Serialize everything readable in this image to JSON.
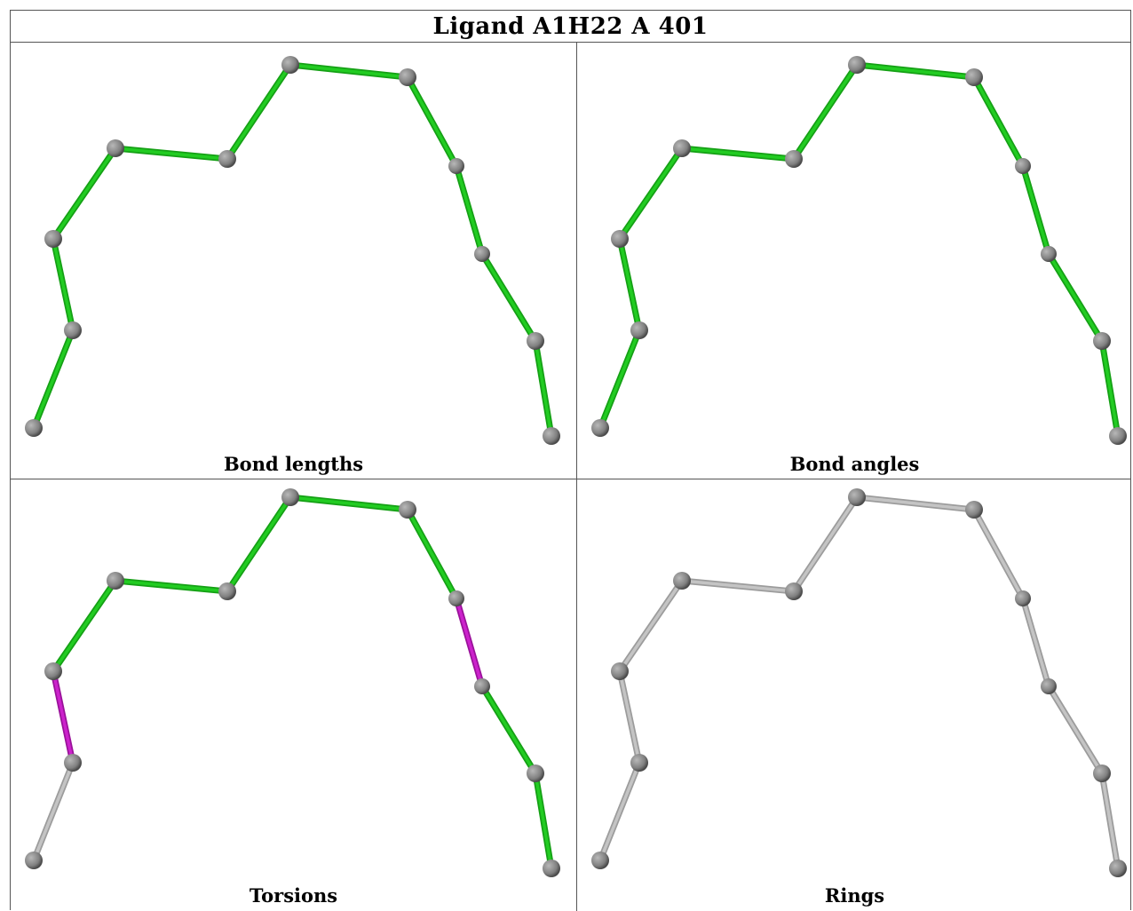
{
  "title": "Ligand A1H22 A 401",
  "colors": {
    "green": "#22cc22",
    "green_dark": "#15a015",
    "magenta": "#cc22cc",
    "gray_bond": "#c4c4c4",
    "atom": "#808080",
    "atom_dark": "#4a4a4a"
  },
  "panels": [
    {
      "label": "Bond lengths",
      "bond_colors": [
        "green",
        "green",
        "green",
        "green",
        "green",
        "green",
        "green",
        "green",
        "green",
        "green",
        "green",
        "green"
      ]
    },
    {
      "label": "Bond angles",
      "bond_colors": [
        "green",
        "green",
        "green",
        "green",
        "green",
        "green",
        "green",
        "green",
        "green",
        "green",
        "green",
        "green"
      ]
    },
    {
      "label": "Torsions",
      "bond_colors": [
        "gray",
        "magenta",
        "green",
        "green",
        "green",
        "green",
        "green",
        "magenta",
        "green",
        "green",
        "green",
        "gray"
      ]
    },
    {
      "label": "Rings",
      "bond_colors": [
        "gray",
        "gray",
        "gray",
        "gray",
        "gray",
        "gray",
        "gray",
        "gray",
        "gray",
        "gray",
        "gray",
        "gray"
      ]
    }
  ]
}
